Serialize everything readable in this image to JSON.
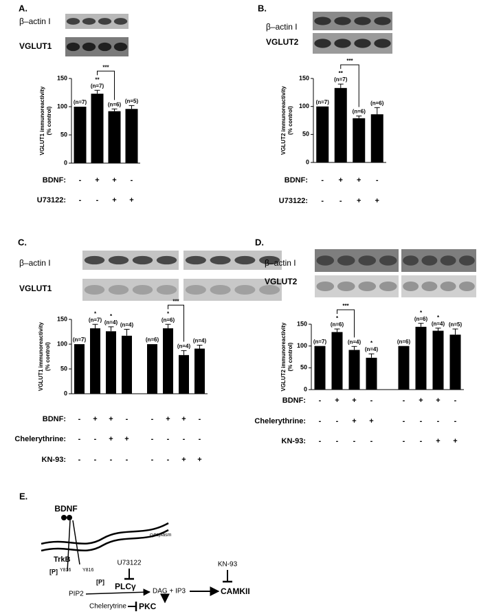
{
  "chart_data": [
    {
      "type": "bar",
      "panel_label": "A.",
      "blot_labels": [
        "β–actin I",
        "VGLUT1"
      ],
      "ylabel": [
        "VGLUT1 immunoreactivity",
        "(% control)"
      ],
      "values": [
        100,
        123,
        92,
        96
      ],
      "errors": [
        null,
        6,
        4,
        6
      ],
      "n_labels": [
        "(n=7)",
        "(n=7)",
        "(n=6)",
        "(n=5)"
      ],
      "stars": [
        null,
        "**",
        null,
        null
      ],
      "significance": [
        {
          "bars": [
            1,
            2
          ],
          "label": "***"
        }
      ],
      "conditions": [
        {
          "label": "BDNF:",
          "values": [
            "-",
            "+",
            "+",
            "-"
          ]
        },
        {
          "label": "U73122:",
          "values": [
            "-",
            "-",
            "+",
            "+"
          ]
        }
      ],
      "ylim": [
        0,
        150
      ],
      "yticks": [
        0,
        50,
        100,
        150
      ],
      "color": "#000000"
    },
    {
      "type": "bar",
      "panel_label": "B.",
      "blot_labels": [
        "β–actin I",
        "VGLUT2"
      ],
      "ylabel": [
        "VGLUT2 immunoreactivity",
        "(% control)"
      ],
      "values": [
        100,
        133,
        79,
        86
      ],
      "errors": [
        null,
        7,
        4,
        12
      ],
      "n_labels": [
        "(n=7)",
        "(n=7)",
        "(n=6)",
        "(n=6)"
      ],
      "stars": [
        null,
        "**",
        null,
        null
      ],
      "significance": [
        {
          "bars": [
            1,
            2
          ],
          "label": "***"
        }
      ],
      "conditions": [
        {
          "label": "BDNF:",
          "values": [
            "-",
            "+",
            "+",
            "-"
          ]
        },
        {
          "label": "U73122:",
          "values": [
            "-",
            "-",
            "+",
            "+"
          ]
        }
      ],
      "ylim": [
        0,
        150
      ],
      "yticks": [
        0,
        50,
        100,
        150
      ],
      "color": "#000000"
    },
    {
      "type": "bar",
      "panel_label": "C.",
      "blot_labels": [
        "β–actin I",
        "VGLUT1"
      ],
      "ylabel": [
        "VGLUT1 immunoreactivity",
        "(% control)"
      ],
      "values": [
        100,
        132,
        126,
        117,
        100,
        132,
        78,
        91
      ],
      "errors": [
        null,
        8,
        9,
        13,
        null,
        8,
        9,
        7
      ],
      "n_labels": [
        "(n=7)",
        "(n=7)",
        "(n=4)",
        "(n=4)",
        "(n=6)",
        "(n=6)",
        "(n=4)",
        "(n=4)"
      ],
      "stars": [
        null,
        "*",
        "*",
        null,
        null,
        "*",
        null,
        null
      ],
      "significance": [
        {
          "bars": [
            5,
            6
          ],
          "label": "***"
        }
      ],
      "conditions": [
        {
          "label": "BDNF:",
          "values": [
            "-",
            "+",
            "+",
            "-",
            "-",
            "+",
            "+",
            "-"
          ]
        },
        {
          "label": "Chelerythrine:",
          "values": [
            "-",
            "-",
            "+",
            "+",
            "-",
            "-",
            "-",
            "-"
          ]
        },
        {
          "label": "KN-93:",
          "values": [
            "-",
            "-",
            "-",
            "-",
            "-",
            "-",
            "+",
            "+"
          ]
        }
      ],
      "ylim": [
        0,
        150
      ],
      "yticks": [
        0,
        50,
        100,
        150
      ],
      "color": "#000000"
    },
    {
      "type": "bar",
      "panel_label": "D.",
      "blot_labels": [
        "β–actin I",
        "VGLUT2"
      ],
      "ylabel": [
        "VGLUT2 immunoreactivity",
        "(% control)"
      ],
      "values": [
        100,
        132,
        91,
        73,
        100,
        144,
        135,
        126
      ],
      "errors": [
        null,
        7,
        8,
        9,
        null,
        8,
        6,
        13
      ],
      "n_labels": [
        "(n=7)",
        "(n=6)",
        "(n=4)",
        "(n=4)",
        "(n=6)",
        "(n=6)",
        "(n=4)",
        "(n=5)"
      ],
      "stars": [
        null,
        "*",
        null,
        "*",
        null,
        "*",
        "*",
        null
      ],
      "significance": [
        {
          "bars": [
            1,
            2
          ],
          "label": "***"
        }
      ],
      "conditions": [
        {
          "label": "BDNF:",
          "values": [
            "-",
            "+",
            "+",
            "-",
            "-",
            "+",
            "+",
            "-"
          ]
        },
        {
          "label": "Chelerythrine:",
          "values": [
            "-",
            "-",
            "+",
            "+",
            "-",
            "-",
            "-",
            "-"
          ]
        },
        {
          "label": "KN-93:",
          "values": [
            "-",
            "-",
            "-",
            "-",
            "-",
            "-",
            "+",
            "+"
          ]
        }
      ],
      "ylim": [
        0,
        150
      ],
      "yticks": [
        0,
        50,
        100,
        150
      ],
      "color": "#000000"
    }
  ],
  "diagram": {
    "panel_label": "E.",
    "ligand": "BDNF",
    "location": "cytoplasm",
    "receptor": "TrkB",
    "phospho": [
      "[P]",
      "[P]"
    ],
    "sites": [
      "Y816",
      "Y816"
    ],
    "inhibitors": [
      "U73122",
      "KN-93",
      "Chelerytrine"
    ],
    "nodes": [
      "PLCγ",
      "PIP2",
      "DAG + IP3",
      "CAMKII",
      "PKC"
    ]
  }
}
